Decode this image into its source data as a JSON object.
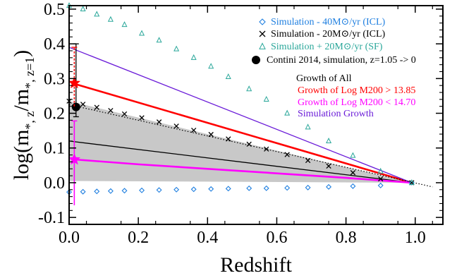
{
  "chart_data": {
    "type": "line",
    "xlabel": "Redshift",
    "ylabel": "log(m*,z/m*,z=1)",
    "xlim": [
      0.0,
      1.08
    ],
    "ylim": [
      -0.12,
      0.51
    ],
    "xticks": [
      0.0,
      0.2,
      0.4,
      0.6,
      0.8,
      1.0
    ],
    "xtick_labels": [
      "0.0",
      "0.2",
      "0.4",
      "0.6",
      "0.8",
      "1.0"
    ],
    "yticks": [
      -0.1,
      0.0,
      0.1,
      0.2,
      0.3,
      0.4,
      0.5
    ],
    "ytick_labels": [
      "-0.1",
      "0.0",
      "0.1",
      "0.2",
      "0.3",
      "0.4",
      "0.5"
    ],
    "legend": [
      {
        "symbol": "diamond",
        "color": "#1f7fe0",
        "text": "Simulation - 40M⊙/yr (ICL)"
      },
      {
        "symbol": "cross",
        "color": "#000000",
        "text": "Simulation - 20M⊙/yr (ICL)"
      },
      {
        "symbol": "triangle",
        "color": "#2aa79a",
        "text": "Simulation + 20M⊙/yr (SF)"
      },
      {
        "symbol": "filled-circle",
        "color": "#000000",
        "text": "Contini 2014, simulation, z=1.05 -> 0"
      }
    ],
    "annotations": [
      {
        "text": "Growth of All",
        "color": "#000000"
      },
      {
        "text": "Growth of Log M200 > 13.85",
        "color": "#ff0000"
      },
      {
        "text": "Growth of Log M200 < 14.70",
        "color": "#ff00ff"
      },
      {
        "text": "Simulation Growth",
        "color": "#6a1bd8"
      }
    ],
    "series": [
      {
        "name": "Simulation - 40M⊙/yr (ICL)",
        "marker": "diamond",
        "color": "#1f7fe0",
        "x": [
          0.0,
          0.04,
          0.08,
          0.12,
          0.16,
          0.21,
          0.26,
          0.31,
          0.36,
          0.41,
          0.46,
          0.52,
          0.57,
          0.63,
          0.69,
          0.75,
          0.82,
          0.9,
          0.99
        ],
        "y": [
          -0.027,
          -0.026,
          -0.025,
          -0.024,
          -0.023,
          -0.022,
          -0.021,
          -0.02,
          -0.019,
          -0.018,
          -0.017,
          -0.016,
          -0.016,
          -0.015,
          -0.014,
          -0.012,
          -0.01,
          -0.008,
          0.0
        ]
      },
      {
        "name": "Simulation - 20M⊙/yr (ICL)",
        "marker": "cross",
        "color": "#000000",
        "x": [
          0.0,
          0.04,
          0.08,
          0.12,
          0.16,
          0.21,
          0.26,
          0.31,
          0.36,
          0.41,
          0.46,
          0.52,
          0.57,
          0.63,
          0.69,
          0.75,
          0.82,
          0.9,
          0.99
        ],
        "y": [
          0.235,
          0.226,
          0.217,
          0.208,
          0.198,
          0.187,
          0.175,
          0.163,
          0.151,
          0.139,
          0.126,
          0.111,
          0.097,
          0.081,
          0.064,
          0.048,
          0.029,
          0.011,
          0.0
        ]
      },
      {
        "name": "Simulation + 20M⊙/yr (SF)",
        "marker": "triangle",
        "color": "#2aa79a",
        "x": [
          0.0,
          0.04,
          0.08,
          0.12,
          0.16,
          0.21,
          0.26,
          0.31,
          0.36,
          0.41,
          0.46,
          0.52,
          0.57,
          0.63,
          0.69,
          0.75,
          0.82,
          0.9,
          0.99
        ],
        "y": [
          0.51,
          0.5,
          0.485,
          0.47,
          0.455,
          0.43,
          0.41,
          0.385,
          0.36,
          0.335,
          0.305,
          0.27,
          0.24,
          0.2,
          0.16,
          0.12,
          0.078,
          0.033,
          0.0
        ]
      },
      {
        "name": "Growth of All",
        "style": "solid",
        "color": "#000000",
        "x": [
          0.0,
          0.99
        ],
        "y": [
          0.12,
          0.0
        ]
      },
      {
        "name": "Growth of Log M200 > 13.85",
        "style": "solid-thick",
        "color": "#ff0000",
        "x": [
          0.015,
          0.99
        ],
        "y": [
          0.285,
          0.0
        ]
      },
      {
        "name": "Growth of Log M200 < 14.70",
        "style": "solid-thick",
        "color": "#ff00ff",
        "x": [
          0.015,
          0.2,
          0.4,
          0.6,
          0.8,
          0.99
        ],
        "y": [
          0.067,
          0.053,
          0.04,
          0.027,
          0.014,
          0.0
        ]
      },
      {
        "name": "Simulation Growth",
        "style": "solid",
        "color": "#6a1bd8",
        "x": [
          0.0,
          0.99
        ],
        "y": [
          0.39,
          0.0
        ]
      },
      {
        "name": "",
        "style": "dotted",
        "color": "#000000",
        "x": [
          0.0,
          1.05
        ],
        "y": [
          0.225,
          -0.012
        ]
      }
    ],
    "band": {
      "color": "#c8c8c8",
      "x": [
        0.0,
        0.99
      ],
      "upper": [
        0.235,
        0.0
      ],
      "lower": [
        0.005,
        0.0
      ]
    },
    "points": [
      {
        "name": "Contini 2014, simulation, z=1.05 -> 0",
        "marker": "filled-circle",
        "color": "#000000",
        "x": 0.02,
        "y": 0.218,
        "yerr_low": 0.19,
        "yerr_high": 0.4
      }
    ],
    "star_points": [
      {
        "color": "#ff0000",
        "x": 0.015,
        "y": 0.287,
        "yerr_low": 0.22,
        "yerr_high": 0.39
      },
      {
        "color": "#ff00ff",
        "x": 0.015,
        "y": 0.067,
        "yerr_low": -0.065,
        "yerr_high": 0.178
      }
    ]
  }
}
